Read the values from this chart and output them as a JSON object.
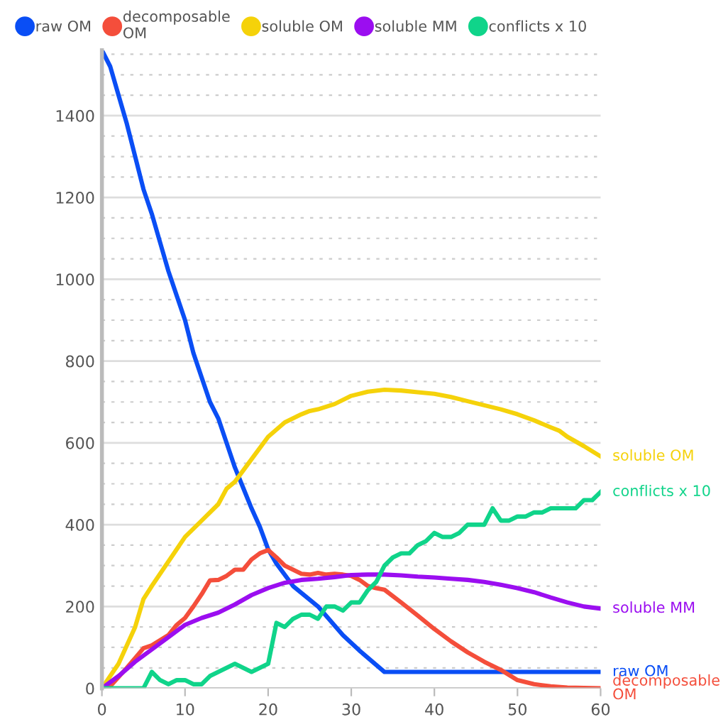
{
  "chart_data": {
    "type": "line",
    "xlim": [
      0,
      60
    ],
    "xticks": [
      0,
      10,
      20,
      30,
      40,
      50,
      60
    ],
    "ylim": [
      0,
      1560
    ],
    "yticks": [
      0,
      200,
      400,
      600,
      800,
      1000,
      1200,
      1400
    ],
    "grid": "y",
    "legend": "top",
    "marker": "none",
    "line_style": "solid",
    "series": [
      {
        "name": "raw OM",
        "color": "#0a4ef5",
        "x": [
          0,
          1,
          2,
          3,
          4,
          5,
          6,
          7,
          8,
          9,
          10,
          11,
          12,
          13,
          14,
          15,
          16,
          17,
          18,
          19,
          20,
          21,
          23,
          26,
          29,
          31,
          34,
          60
        ],
        "values": [
          1560,
          1520,
          1450,
          1380,
          1300,
          1220,
          1160,
          1090,
          1020,
          960,
          900,
          820,
          760,
          700,
          660,
          600,
          540,
          490,
          440,
          395,
          340,
          305,
          250,
          200,
          130,
          92,
          40,
          40
        ]
      },
      {
        "name": "decomposable OM",
        "color": "#f44e3b",
        "x": [
          0,
          1,
          3,
          5,
          6,
          8,
          9,
          10,
          11,
          12,
          13,
          14,
          15,
          16,
          17,
          18,
          19,
          20,
          21,
          22,
          23,
          24,
          25,
          26,
          27,
          28,
          29,
          30,
          31,
          32,
          33,
          34,
          36,
          38,
          40,
          42,
          44,
          46,
          48,
          50,
          52,
          54,
          56,
          60
        ],
        "values": [
          0,
          5,
          50,
          98,
          105,
          130,
          155,
          172,
          200,
          230,
          264,
          265,
          275,
          290,
          290,
          315,
          330,
          338,
          320,
          300,
          290,
          280,
          278,
          282,
          278,
          280,
          278,
          275,
          265,
          250,
          245,
          241,
          210,
          178,
          145,
          115,
          88,
          65,
          45,
          20,
          10,
          5,
          2,
          0
        ]
      },
      {
        "name": "soluble OM",
        "color": "#f5d20a",
        "x": [
          0,
          2,
          4,
          5,
          6,
          8,
          10,
          12,
          14,
          15,
          16,
          18,
          20,
          22,
          24,
          25,
          26,
          28,
          30,
          32,
          34,
          36,
          38,
          40,
          42,
          44,
          46,
          48,
          50,
          52,
          54,
          55,
          56,
          58,
          60
        ],
        "values": [
          0,
          60,
          150,
          218,
          250,
          310,
          370,
          410,
          450,
          488,
          505,
          560,
          615,
          650,
          670,
          678,
          682,
          695,
          715,
          725,
          730,
          728,
          724,
          720,
          712,
          702,
          692,
          682,
          670,
          655,
          638,
          630,
          615,
          592,
          567
        ]
      },
      {
        "name": "soluble MM",
        "color": "#9b0ef0",
        "x": [
          0,
          2,
          4,
          6,
          8,
          10,
          12,
          14,
          16,
          18,
          20,
          22,
          24,
          26,
          28,
          30,
          32,
          34,
          36,
          38,
          40,
          42,
          44,
          46,
          48,
          50,
          52,
          54,
          56,
          58,
          60
        ],
        "values": [
          0,
          30,
          65,
          95,
          125,
          155,
          172,
          185,
          205,
          228,
          245,
          258,
          265,
          268,
          272,
          277,
          278,
          278,
          276,
          273,
          271,
          268,
          265,
          260,
          253,
          245,
          235,
          222,
          210,
          200,
          195
        ]
      },
      {
        "name": "conflicts x 10",
        "color": "#10d48a",
        "x": [
          0,
          5,
          6,
          7,
          8,
          9,
          10,
          11,
          12,
          13,
          14,
          15,
          16,
          17,
          18,
          19,
          20,
          21,
          22,
          23,
          24,
          25,
          26,
          27,
          28,
          29,
          30,
          31,
          32,
          33,
          34,
          35,
          36,
          37,
          38,
          39,
          40,
          41,
          42,
          43,
          44,
          45,
          46,
          47,
          48,
          49,
          50,
          51,
          52,
          53,
          54,
          55,
          56,
          57,
          58,
          59,
          60
        ],
        "values": [
          0,
          0,
          40,
          20,
          10,
          20,
          20,
          10,
          10,
          30,
          40,
          50,
          60,
          50,
          40,
          50,
          60,
          160,
          150,
          170,
          180,
          180,
          170,
          200,
          200,
          190,
          210,
          210,
          240,
          260,
          300,
          320,
          330,
          330,
          350,
          360,
          380,
          370,
          370,
          380,
          400,
          400,
          400,
          440,
          410,
          410,
          420,
          420,
          430,
          430,
          440,
          440,
          440,
          440,
          460,
          460,
          480
        ]
      }
    ]
  }
}
